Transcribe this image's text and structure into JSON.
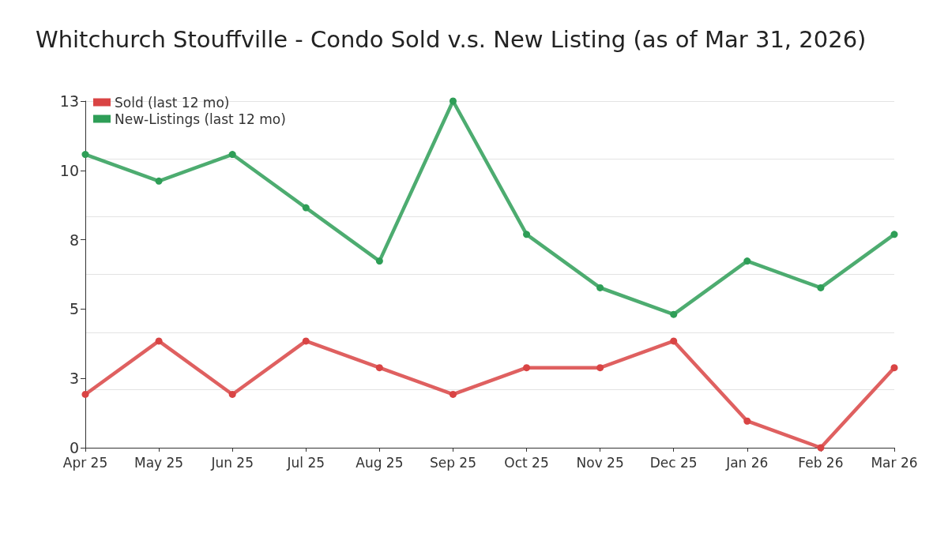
{
  "chart_data": {
    "type": "line",
    "title": "Whitchurch Stouffville - Condo Sold v.s. New Listing (as of Mar 31, 2026)",
    "categories": [
      "Apr 25",
      "May 25",
      "Jun 25",
      "Jul 25",
      "Aug 25",
      "Sep 25",
      "Oct 25",
      "Nov 25",
      "Dec 25",
      "Jan 26",
      "Feb 26",
      "Mar 26"
    ],
    "series": [
      {
        "name": "Sold (last 12 mo)",
        "color": "#d94444",
        "values": [
          2,
          4,
          2,
          4,
          3,
          2,
          3,
          3,
          4,
          1,
          0,
          3
        ]
      },
      {
        "name": "New-Listings (last 12 mo)",
        "color": "#2e9e57",
        "values": [
          11,
          10,
          11,
          9,
          7,
          13,
          8,
          6,
          5,
          7,
          6,
          8
        ]
      }
    ],
    "ylim": [
      0,
      13
    ],
    "yticks": [
      0,
      {
        "value": 2.17,
        "label": null
      },
      {
        "value": 2.6,
        "label": "3"
      },
      {
        "value": 4.33,
        "label": null
      },
      {
        "value": 5.2,
        "label": "5"
      },
      {
        "value": 6.5,
        "label": null
      },
      {
        "value": 7.8,
        "label": "8"
      },
      {
        "value": 8.67,
        "label": null
      },
      {
        "value": 10.4,
        "label": "10"
      },
      {
        "value": 10.83,
        "label": null
      },
      13
    ],
    "grid": "y",
    "legend": "top left",
    "marker": "circle",
    "line_style": "solid"
  }
}
